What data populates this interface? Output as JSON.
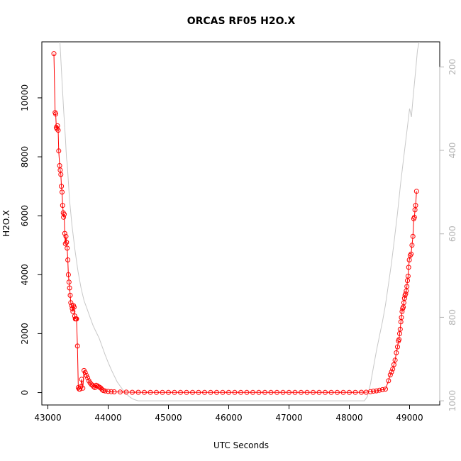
{
  "chart_data": {
    "type": "scatter",
    "title": "ORCAS RF05 H2O.X",
    "xlabel": "UTC Seconds",
    "ylabel": "H2O.X",
    "xlim": [
      42900,
      49500
    ],
    "ylim": [
      -420,
      11900
    ],
    "x_ticks": [
      43000,
      44000,
      45000,
      46000,
      47000,
      48000,
      49000
    ],
    "x_tick_labels": [
      "43000",
      "44000",
      "45000",
      "46000",
      "47000",
      "48000",
      "49000"
    ],
    "y_ticks": [
      0,
      2000,
      4000,
      6000,
      8000,
      10000
    ],
    "y_tick_labels": [
      "0",
      "2000",
      "4000",
      "6000",
      "8000",
      "10000"
    ],
    "y2_lim": [
      1010,
      140
    ],
    "y2_reversed": true,
    "y2_ticks": [
      200,
      400,
      600,
      800,
      1000
    ],
    "y2_tick_labels": [
      "200",
      "400",
      "600",
      "800",
      "1000"
    ],
    "grid": false,
    "legend": "none",
    "series": [
      {
        "role": "H2O.X",
        "axis": "left",
        "color": "#ff0000",
        "marker": "open-circle",
        "points": [
          [
            43100,
            11500
          ],
          [
            43120,
            9500
          ],
          [
            43130,
            9450
          ],
          [
            43140,
            9000
          ],
          [
            43150,
            8950
          ],
          [
            43160,
            9050
          ],
          [
            43170,
            8900
          ],
          [
            43180,
            8200
          ],
          [
            43195,
            7700
          ],
          [
            43205,
            7550
          ],
          [
            43215,
            7400
          ],
          [
            43225,
            7000
          ],
          [
            43235,
            6800
          ],
          [
            43245,
            6350
          ],
          [
            43255,
            6100
          ],
          [
            43260,
            5950
          ],
          [
            43270,
            6050
          ],
          [
            43280,
            5400
          ],
          [
            43290,
            5050
          ],
          [
            43300,
            5300
          ],
          [
            43310,
            5100
          ],
          [
            43320,
            4900
          ],
          [
            43330,
            4500
          ],
          [
            43340,
            4000
          ],
          [
            43350,
            3750
          ],
          [
            43360,
            3550
          ],
          [
            43370,
            3300
          ],
          [
            43380,
            3050
          ],
          [
            43395,
            2950
          ],
          [
            43405,
            2850
          ],
          [
            43415,
            2750
          ],
          [
            43425,
            2950
          ],
          [
            43435,
            2900
          ],
          [
            43445,
            2600
          ],
          [
            43455,
            2500
          ],
          [
            43465,
            2500
          ],
          [
            43475,
            2500
          ],
          [
            43490,
            1580
          ],
          [
            43505,
            170
          ],
          [
            43520,
            120
          ],
          [
            43530,
            120
          ],
          [
            43545,
            200
          ],
          [
            43560,
            450
          ],
          [
            43580,
            150
          ],
          [
            43600,
            750
          ],
          [
            43620,
            680
          ],
          [
            43640,
            580
          ],
          [
            43660,
            500
          ],
          [
            43680,
            400
          ],
          [
            43700,
            330
          ],
          [
            43720,
            280
          ],
          [
            43740,
            250
          ],
          [
            43760,
            200
          ],
          [
            43780,
            170
          ],
          [
            43800,
            250
          ],
          [
            43820,
            230
          ],
          [
            43840,
            200
          ],
          [
            43860,
            180
          ],
          [
            43880,
            150
          ],
          [
            43900,
            100
          ],
          [
            43920,
            70
          ],
          [
            43950,
            55
          ],
          [
            44000,
            40
          ],
          [
            44050,
            30
          ],
          [
            44100,
            25
          ],
          [
            44200,
            20
          ],
          [
            44300,
            15
          ],
          [
            44400,
            10
          ],
          [
            44500,
            10
          ],
          [
            44600,
            8
          ],
          [
            44700,
            8
          ],
          [
            44800,
            7
          ],
          [
            44900,
            6
          ],
          [
            45000,
            6
          ],
          [
            45100,
            5
          ],
          [
            45200,
            5
          ],
          [
            45300,
            5
          ],
          [
            45400,
            5
          ],
          [
            45500,
            5
          ],
          [
            45600,
            5
          ],
          [
            45700,
            5
          ],
          [
            45800,
            5
          ],
          [
            45900,
            5
          ],
          [
            46000,
            5
          ],
          [
            46100,
            5
          ],
          [
            46200,
            5
          ],
          [
            46300,
            5
          ],
          [
            46400,
            5
          ],
          [
            46500,
            5
          ],
          [
            46600,
            5
          ],
          [
            46700,
            5
          ],
          [
            46800,
            5
          ],
          [
            46900,
            5
          ],
          [
            47000,
            5
          ],
          [
            47100,
            5
          ],
          [
            47200,
            5
          ],
          [
            47300,
            5
          ],
          [
            47400,
            5
          ],
          [
            47500,
            5
          ],
          [
            47600,
            5
          ],
          [
            47700,
            5
          ],
          [
            47800,
            6
          ],
          [
            47900,
            6
          ],
          [
            48000,
            7
          ],
          [
            48100,
            8
          ],
          [
            48200,
            10
          ],
          [
            48280,
            12
          ],
          [
            48350,
            30
          ],
          [
            48400,
            50
          ],
          [
            48450,
            60
          ],
          [
            48500,
            80
          ],
          [
            48550,
            100
          ],
          [
            48600,
            120
          ],
          [
            48650,
            400
          ],
          [
            48680,
            600
          ],
          [
            48700,
            700
          ],
          [
            48720,
            800
          ],
          [
            48740,
            950
          ],
          [
            48760,
            1100
          ],
          [
            48780,
            1350
          ],
          [
            48800,
            1550
          ],
          [
            48815,
            1750
          ],
          [
            48825,
            1800
          ],
          [
            48835,
            2000
          ],
          [
            48845,
            2150
          ],
          [
            48855,
            2400
          ],
          [
            48865,
            2550
          ],
          [
            48875,
            2750
          ],
          [
            48885,
            2850
          ],
          [
            48895,
            2900
          ],
          [
            48905,
            3050
          ],
          [
            48915,
            3200
          ],
          [
            48925,
            3300
          ],
          [
            48935,
            3350
          ],
          [
            48945,
            3450
          ],
          [
            48955,
            3600
          ],
          [
            48965,
            3800
          ],
          [
            48975,
            3950
          ],
          [
            48985,
            4250
          ],
          [
            48995,
            4500
          ],
          [
            49010,
            4650
          ],
          [
            49025,
            4700
          ],
          [
            49040,
            5000
          ],
          [
            49055,
            5300
          ],
          [
            49070,
            5900
          ],
          [
            49080,
            5950
          ],
          [
            49090,
            6200
          ],
          [
            49100,
            6350
          ],
          [
            49115,
            6830
          ]
        ]
      },
      {
        "role": "secondary",
        "axis": "right",
        "color": "#c8c8c8",
        "marker": "none",
        "points": [
          [
            43200,
            140
          ],
          [
            43230,
            220
          ],
          [
            43260,
            300
          ],
          [
            43290,
            370
          ],
          [
            43310,
            420
          ],
          [
            43320,
            430
          ],
          [
            43360,
            520
          ],
          [
            43400,
            580
          ],
          [
            43450,
            640
          ],
          [
            43500,
            690
          ],
          [
            43550,
            730
          ],
          [
            43600,
            760
          ],
          [
            43650,
            780
          ],
          [
            43700,
            800
          ],
          [
            43750,
            820
          ],
          [
            43800,
            835
          ],
          [
            43850,
            850
          ],
          [
            43900,
            870
          ],
          [
            43950,
            890
          ],
          [
            44000,
            908
          ],
          [
            44050,
            925
          ],
          [
            44100,
            940
          ],
          [
            44150,
            955
          ],
          [
            44200,
            965
          ],
          [
            44250,
            975
          ],
          [
            44300,
            983
          ],
          [
            44350,
            990
          ],
          [
            44400,
            995
          ],
          [
            44450,
            998
          ],
          [
            44500,
            1000
          ],
          [
            45000,
            1000
          ],
          [
            46000,
            1000
          ],
          [
            47000,
            1000
          ],
          [
            48000,
            1000
          ],
          [
            48250,
            1000
          ],
          [
            48300,
            990
          ],
          [
            48350,
            960
          ],
          [
            48400,
            920
          ],
          [
            48450,
            880
          ],
          [
            48500,
            845
          ],
          [
            48550,
            810
          ],
          [
            48600,
            770
          ],
          [
            48650,
            720
          ],
          [
            48700,
            670
          ],
          [
            48750,
            610
          ],
          [
            48800,
            550
          ],
          [
            48850,
            480
          ],
          [
            48900,
            420
          ],
          [
            48950,
            360
          ],
          [
            49000,
            300
          ],
          [
            49030,
            320
          ],
          [
            49060,
            270
          ],
          [
            49100,
            210
          ],
          [
            49130,
            160
          ],
          [
            49160,
            140
          ]
        ]
      }
    ]
  },
  "colors": {
    "primary": "#ff0000",
    "secondary": "#c8c8c8",
    "axis": "#000000",
    "secondary_axis": "#b4b4b4"
  }
}
